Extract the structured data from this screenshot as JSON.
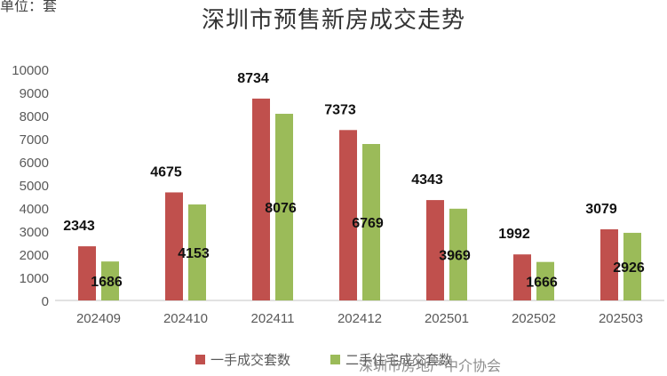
{
  "unit_label": "单位：套",
  "watermark": "深圳市房地产中介协会",
  "colors": {
    "new": "#C0504D",
    "second": "#9BBB59",
    "axis": "#D9D9D9",
    "text": "#595959"
  },
  "chart_data": {
    "type": "bar",
    "title": "深圳市预售新房成交走势",
    "categories": [
      "202409",
      "202410",
      "202411",
      "202412",
      "202501",
      "202502",
      "202503"
    ],
    "ylim": [
      0,
      10000
    ],
    "yticks": [
      0,
      1000,
      2000,
      3000,
      4000,
      5000,
      6000,
      7000,
      8000,
      9000,
      10000
    ],
    "grid": false,
    "legend_position": "bottom",
    "series": [
      {
        "name": "一手成交套数",
        "values": [
          2343,
          4675,
          8734,
          7373,
          4343,
          1992,
          3079
        ]
      },
      {
        "name": "二手住宅成交套数",
        "values": [
          1686,
          4153,
          8076,
          6769,
          3969,
          1666,
          2926
        ]
      }
    ]
  }
}
